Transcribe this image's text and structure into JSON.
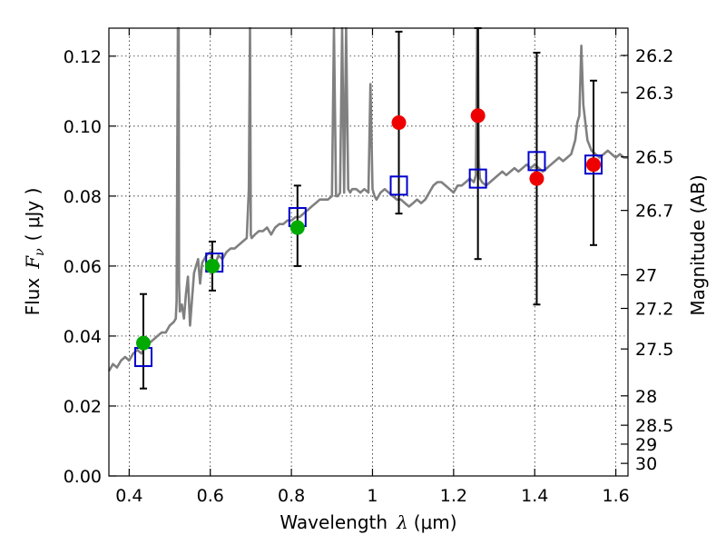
{
  "chart_data": {
    "type": "scatter",
    "title": "",
    "xlabel": "Wavelength λ (μm)",
    "xlabel_parts": {
      "text": "Wavelength",
      "symbol": "λ",
      "unit": "(μm)"
    },
    "ylabel": "Flux F_ν (μJy)",
    "ylabel_parts": {
      "text": "Flux",
      "symbol": "F",
      "subscript": "ν",
      "unit": "( μJy )"
    },
    "y2label": "Magnitude (AB)",
    "xlim": [
      0.35,
      1.63
    ],
    "ylim": [
      0.0,
      0.128
    ],
    "grid": true,
    "grid_style": "dotted",
    "xticks": [
      0.4,
      0.6,
      0.8,
      1.0,
      1.2,
      1.4,
      1.6
    ],
    "xtick_labels": [
      "0.4",
      "0.6",
      "0.8",
      "1",
      "1.2",
      "1.4",
      "1.6"
    ],
    "yticks": [
      0.0,
      0.02,
      0.04,
      0.06,
      0.08,
      0.1,
      0.12
    ],
    "ytick_labels": [
      "0.00",
      "0.02",
      "0.04",
      "0.06",
      "0.08",
      "0.10",
      "0.12"
    ],
    "y2ticks": [
      {
        "label": "26.2",
        "flux": 0.1202
      },
      {
        "label": "26.3",
        "flux": 0.1096
      },
      {
        "label": "26.5",
        "flux": 0.0912
      },
      {
        "label": "26.7",
        "flux": 0.0759
      },
      {
        "label": "27",
        "flux": 0.0575
      },
      {
        "label": "27.2",
        "flux": 0.0479
      },
      {
        "label": "27.5",
        "flux": 0.0363
      },
      {
        "label": "28",
        "flux": 0.0229
      },
      {
        "label": "28.5",
        "flux": 0.0145
      },
      {
        "label": "29",
        "flux": 0.0091
      },
      {
        "label": "30",
        "flux": 0.0036
      }
    ],
    "colors": {
      "spectrum": "#808080",
      "model_box": "#0000cc",
      "detection": "#00aa00",
      "upper": "#ee0000",
      "errorbar": "#000000"
    },
    "spectrum": {
      "x": [
        0.35,
        0.36,
        0.37,
        0.38,
        0.39,
        0.4,
        0.41,
        0.42,
        0.43,
        0.44,
        0.45,
        0.46,
        0.47,
        0.48,
        0.49,
        0.5,
        0.51,
        0.515,
        0.517,
        0.52,
        0.522,
        0.523,
        0.525,
        0.53,
        0.535,
        0.54,
        0.545,
        0.55,
        0.56,
        0.57,
        0.575,
        0.58,
        0.59,
        0.6,
        0.61,
        0.62,
        0.63,
        0.64,
        0.65,
        0.66,
        0.67,
        0.68,
        0.69,
        0.695,
        0.698,
        0.7,
        0.702,
        0.71,
        0.72,
        0.73,
        0.74,
        0.75,
        0.76,
        0.77,
        0.78,
        0.79,
        0.8,
        0.81,
        0.82,
        0.83,
        0.84,
        0.85,
        0.86,
        0.87,
        0.88,
        0.89,
        0.9,
        0.905,
        0.91,
        0.915,
        0.92,
        0.925,
        0.93,
        0.935,
        0.94,
        0.945,
        0.95,
        0.96,
        0.97,
        0.98,
        0.99,
        0.995,
        1.0,
        1.005,
        1.01,
        1.02,
        1.03,
        1.04,
        1.05,
        1.06,
        1.07,
        1.08,
        1.09,
        1.1,
        1.11,
        1.12,
        1.13,
        1.14,
        1.15,
        1.16,
        1.17,
        1.18,
        1.19,
        1.2,
        1.21,
        1.22,
        1.23,
        1.24,
        1.25,
        1.255,
        1.258,
        1.26,
        1.262,
        1.265,
        1.27,
        1.28,
        1.29,
        1.3,
        1.31,
        1.32,
        1.33,
        1.34,
        1.35,
        1.36,
        1.37,
        1.38,
        1.39,
        1.4,
        1.41,
        1.42,
        1.43,
        1.44,
        1.45,
        1.46,
        1.47,
        1.48,
        1.49,
        1.5,
        1.505,
        1.51,
        1.515,
        1.52,
        1.53,
        1.54,
        1.55,
        1.56,
        1.57,
        1.58,
        1.59,
        1.6,
        1.61,
        1.62,
        1.63
      ],
      "y": [
        0.03,
        0.032,
        0.031,
        0.033,
        0.034,
        0.033,
        0.035,
        0.036,
        0.035,
        0.037,
        0.038,
        0.039,
        0.04,
        0.041,
        0.041,
        0.043,
        0.044,
        0.045,
        0.05,
        0.128,
        0.128,
        0.055,
        0.047,
        0.049,
        0.045,
        0.052,
        0.057,
        0.043,
        0.058,
        0.062,
        0.055,
        0.061,
        0.063,
        0.064,
        0.06,
        0.063,
        0.062,
        0.064,
        0.065,
        0.065,
        0.066,
        0.067,
        0.068,
        0.082,
        0.128,
        0.069,
        0.068,
        0.069,
        0.07,
        0.07,
        0.071,
        0.069,
        0.071,
        0.072,
        0.072,
        0.073,
        0.073,
        0.074,
        0.074,
        0.075,
        0.076,
        0.077,
        0.078,
        0.079,
        0.079,
        0.079,
        0.08,
        0.128,
        0.08,
        0.08,
        0.081,
        0.128,
        0.081,
        0.128,
        0.082,
        0.081,
        0.082,
        0.082,
        0.081,
        0.082,
        0.081,
        0.112,
        0.082,
        0.08,
        0.079,
        0.081,
        0.082,
        0.081,
        0.08,
        0.079,
        0.079,
        0.078,
        0.077,
        0.078,
        0.079,
        0.078,
        0.079,
        0.081,
        0.083,
        0.084,
        0.084,
        0.083,
        0.082,
        0.081,
        0.083,
        0.083,
        0.084,
        0.085,
        0.084,
        0.086,
        0.128,
        0.128,
        0.09,
        0.085,
        0.084,
        0.083,
        0.084,
        0.085,
        0.086,
        0.087,
        0.086,
        0.087,
        0.088,
        0.087,
        0.088,
        0.089,
        0.088,
        0.089,
        0.088,
        0.087,
        0.088,
        0.089,
        0.09,
        0.091,
        0.09,
        0.091,
        0.092,
        0.096,
        0.101,
        0.103,
        0.123,
        0.106,
        0.096,
        0.093,
        0.092,
        0.091,
        0.092,
        0.093,
        0.092,
        0.091,
        0.092,
        0.091,
        0.091
      ]
    },
    "model_boxes": {
      "x": [
        0.435,
        0.61,
        0.815,
        1.065,
        1.26,
        1.405,
        1.545
      ],
      "y": [
        0.034,
        0.061,
        0.074,
        0.083,
        0.085,
        0.09,
        0.089
      ]
    },
    "detections": {
      "x": [
        0.435,
        0.605,
        0.815
      ],
      "y": [
        0.038,
        0.06,
        0.071
      ],
      "yerr_low": [
        0.025,
        0.053,
        0.06
      ],
      "yerr_high": [
        0.052,
        0.067,
        0.083
      ]
    },
    "upper_points": {
      "x": [
        1.065,
        1.26,
        1.405,
        1.545
      ],
      "y": [
        0.101,
        0.103,
        0.085,
        0.089
      ],
      "yerr_low": [
        0.075,
        0.062,
        0.049,
        0.066
      ],
      "yerr_high": [
        0.127,
        0.128,
        0.121,
        0.113
      ]
    }
  }
}
